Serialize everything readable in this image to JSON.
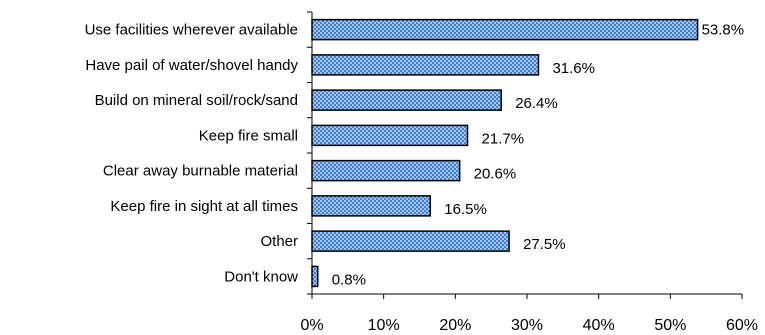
{
  "chart_data": {
    "type": "bar",
    "orientation": "horizontal",
    "categories": [
      "Use facilities wherever available",
      "Have pail of water/shovel handy",
      "Build on mineral soil/rock/sand",
      "Keep fire small",
      "Clear away burnable material",
      "Keep fire in sight at all times",
      "Other",
      "Don't know"
    ],
    "values": [
      53.8,
      31.6,
      26.4,
      21.7,
      20.6,
      16.5,
      27.5,
      0.8
    ],
    "value_labels": [
      "53.8%",
      "31.6%",
      "26.4%",
      "21.7%",
      "20.6%",
      "16.5%",
      "27.5%",
      "0.8%"
    ],
    "xlim": [
      0,
      60
    ],
    "x_ticks": [
      "0%",
      "10%",
      "20%",
      "30%",
      "40%",
      "50%",
      "60%"
    ],
    "grid": false,
    "legend": "none",
    "bar_color": "#3c7fd6",
    "bar_pattern_color": "#ffffff",
    "bar_outline": "#000000"
  }
}
